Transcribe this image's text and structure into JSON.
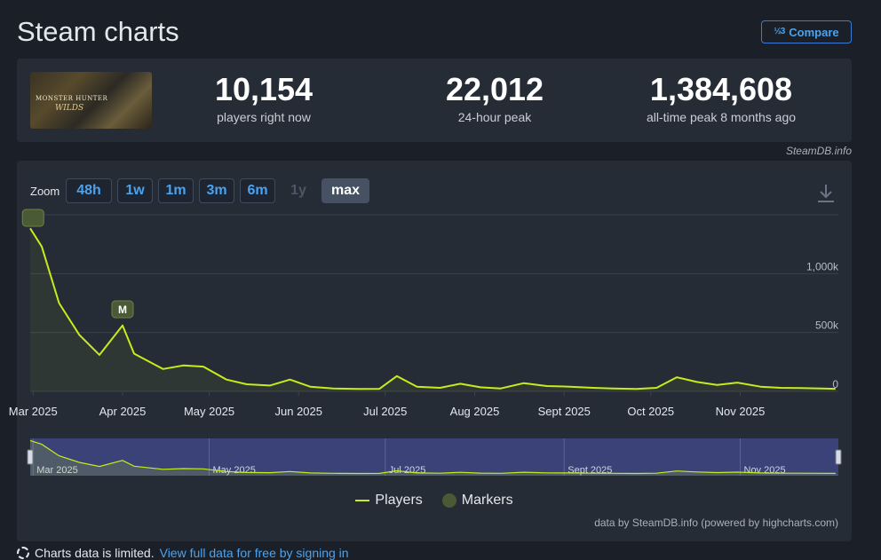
{
  "page": {
    "title": "Steam charts",
    "compare_label": "Compare",
    "compare_icon": "½3"
  },
  "game": {
    "logo_text": "MONSTER HUNTER",
    "logo_sub": "WILDS"
  },
  "stats": [
    {
      "value": "10,154",
      "label": "players right now"
    },
    {
      "value": "22,012",
      "label": "24-hour peak"
    },
    {
      "value": "1,384,608",
      "label": "all-time peak 8 months ago"
    }
  ],
  "steamdb_credit": "SteamDB.info",
  "zoom": {
    "label": "Zoom",
    "buttons": [
      {
        "label": "48h",
        "state": "enabled"
      },
      {
        "label": "1w",
        "state": "enabled"
      },
      {
        "label": "1m",
        "state": "enabled"
      },
      {
        "label": "3m",
        "state": "enabled"
      },
      {
        "label": "6m",
        "state": "enabled"
      },
      {
        "label": "1y",
        "state": "disabled"
      },
      {
        "label": "max",
        "state": "active"
      }
    ]
  },
  "chart_data": {
    "type": "line",
    "title": "",
    "xlabel": "",
    "ylabel": "",
    "ylim": [
      0,
      1500000
    ],
    "y_ticks": [
      {
        "value": 0,
        "label": "0"
      },
      {
        "value": 500000,
        "label": "500k"
      },
      {
        "value": 1000000,
        "label": "1,000k"
      }
    ],
    "x_ticks": [
      {
        "date": "2025-03-01",
        "label": "Mar 2025"
      },
      {
        "date": "2025-04-01",
        "label": "Apr 2025"
      },
      {
        "date": "2025-05-01",
        "label": "May 2025"
      },
      {
        "date": "2025-06-01",
        "label": "Jun 2025"
      },
      {
        "date": "2025-07-01",
        "label": "Jul 2025"
      },
      {
        "date": "2025-08-01",
        "label": "Aug 2025"
      },
      {
        "date": "2025-09-01",
        "label": "Sept 2025"
      },
      {
        "date": "2025-10-01",
        "label": "Oct 2025"
      },
      {
        "date": "2025-11-01",
        "label": "Nov 2025"
      }
    ],
    "xlim": [
      "2025-02-28",
      "2025-12-05"
    ],
    "grid": true,
    "color": "#c4ed1b",
    "series": [
      {
        "name": "Players",
        "points": [
          [
            "2025-02-28",
            1384608
          ],
          [
            "2025-03-04",
            1230000
          ],
          [
            "2025-03-10",
            750000
          ],
          [
            "2025-03-17",
            480000
          ],
          [
            "2025-03-24",
            310000
          ],
          [
            "2025-04-01",
            560000
          ],
          [
            "2025-04-05",
            320000
          ],
          [
            "2025-04-15",
            190000
          ],
          [
            "2025-04-22",
            220000
          ],
          [
            "2025-04-29",
            210000
          ],
          [
            "2025-05-07",
            100000
          ],
          [
            "2025-05-14",
            60000
          ],
          [
            "2025-05-22",
            50000
          ],
          [
            "2025-05-29",
            100000
          ],
          [
            "2025-06-05",
            40000
          ],
          [
            "2025-06-13",
            25000
          ],
          [
            "2025-06-22",
            20000
          ],
          [
            "2025-06-29",
            22000
          ],
          [
            "2025-07-05",
            130000
          ],
          [
            "2025-07-12",
            40000
          ],
          [
            "2025-07-20",
            30000
          ],
          [
            "2025-07-27",
            65000
          ],
          [
            "2025-08-03",
            35000
          ],
          [
            "2025-08-10",
            25000
          ],
          [
            "2025-08-18",
            70000
          ],
          [
            "2025-08-26",
            45000
          ],
          [
            "2025-09-03",
            40000
          ],
          [
            "2025-09-11",
            30000
          ],
          [
            "2025-09-18",
            25000
          ],
          [
            "2025-09-26",
            20000
          ],
          [
            "2025-10-03",
            30000
          ],
          [
            "2025-10-10",
            120000
          ],
          [
            "2025-10-17",
            80000
          ],
          [
            "2025-10-24",
            55000
          ],
          [
            "2025-10-31",
            75000
          ],
          [
            "2025-11-08",
            40000
          ],
          [
            "2025-11-15",
            30000
          ],
          [
            "2025-11-22",
            28000
          ],
          [
            "2025-11-29",
            25000
          ],
          [
            "2025-12-04",
            22000
          ]
        ]
      }
    ],
    "markers": [
      {
        "date": "2025-03-01",
        "label": ""
      },
      {
        "date": "2025-04-01",
        "label": "M"
      }
    ],
    "navigator_ticks": [
      {
        "date": "2025-03-01",
        "label": "Mar 2025"
      },
      {
        "date": "2025-05-01",
        "label": "May 2025"
      },
      {
        "date": "2025-07-01",
        "label": "Jul 2025"
      },
      {
        "date": "2025-09-01",
        "label": "Sept 2025"
      },
      {
        "date": "2025-11-01",
        "label": "Nov 2025"
      }
    ]
  },
  "legend": {
    "players": "Players",
    "markers": "Markers"
  },
  "chart_credit": "data by SteamDB.info (powered by highcharts.com)",
  "footer": {
    "note": "Charts data is limited.",
    "link": "View full data for free by signing in"
  }
}
